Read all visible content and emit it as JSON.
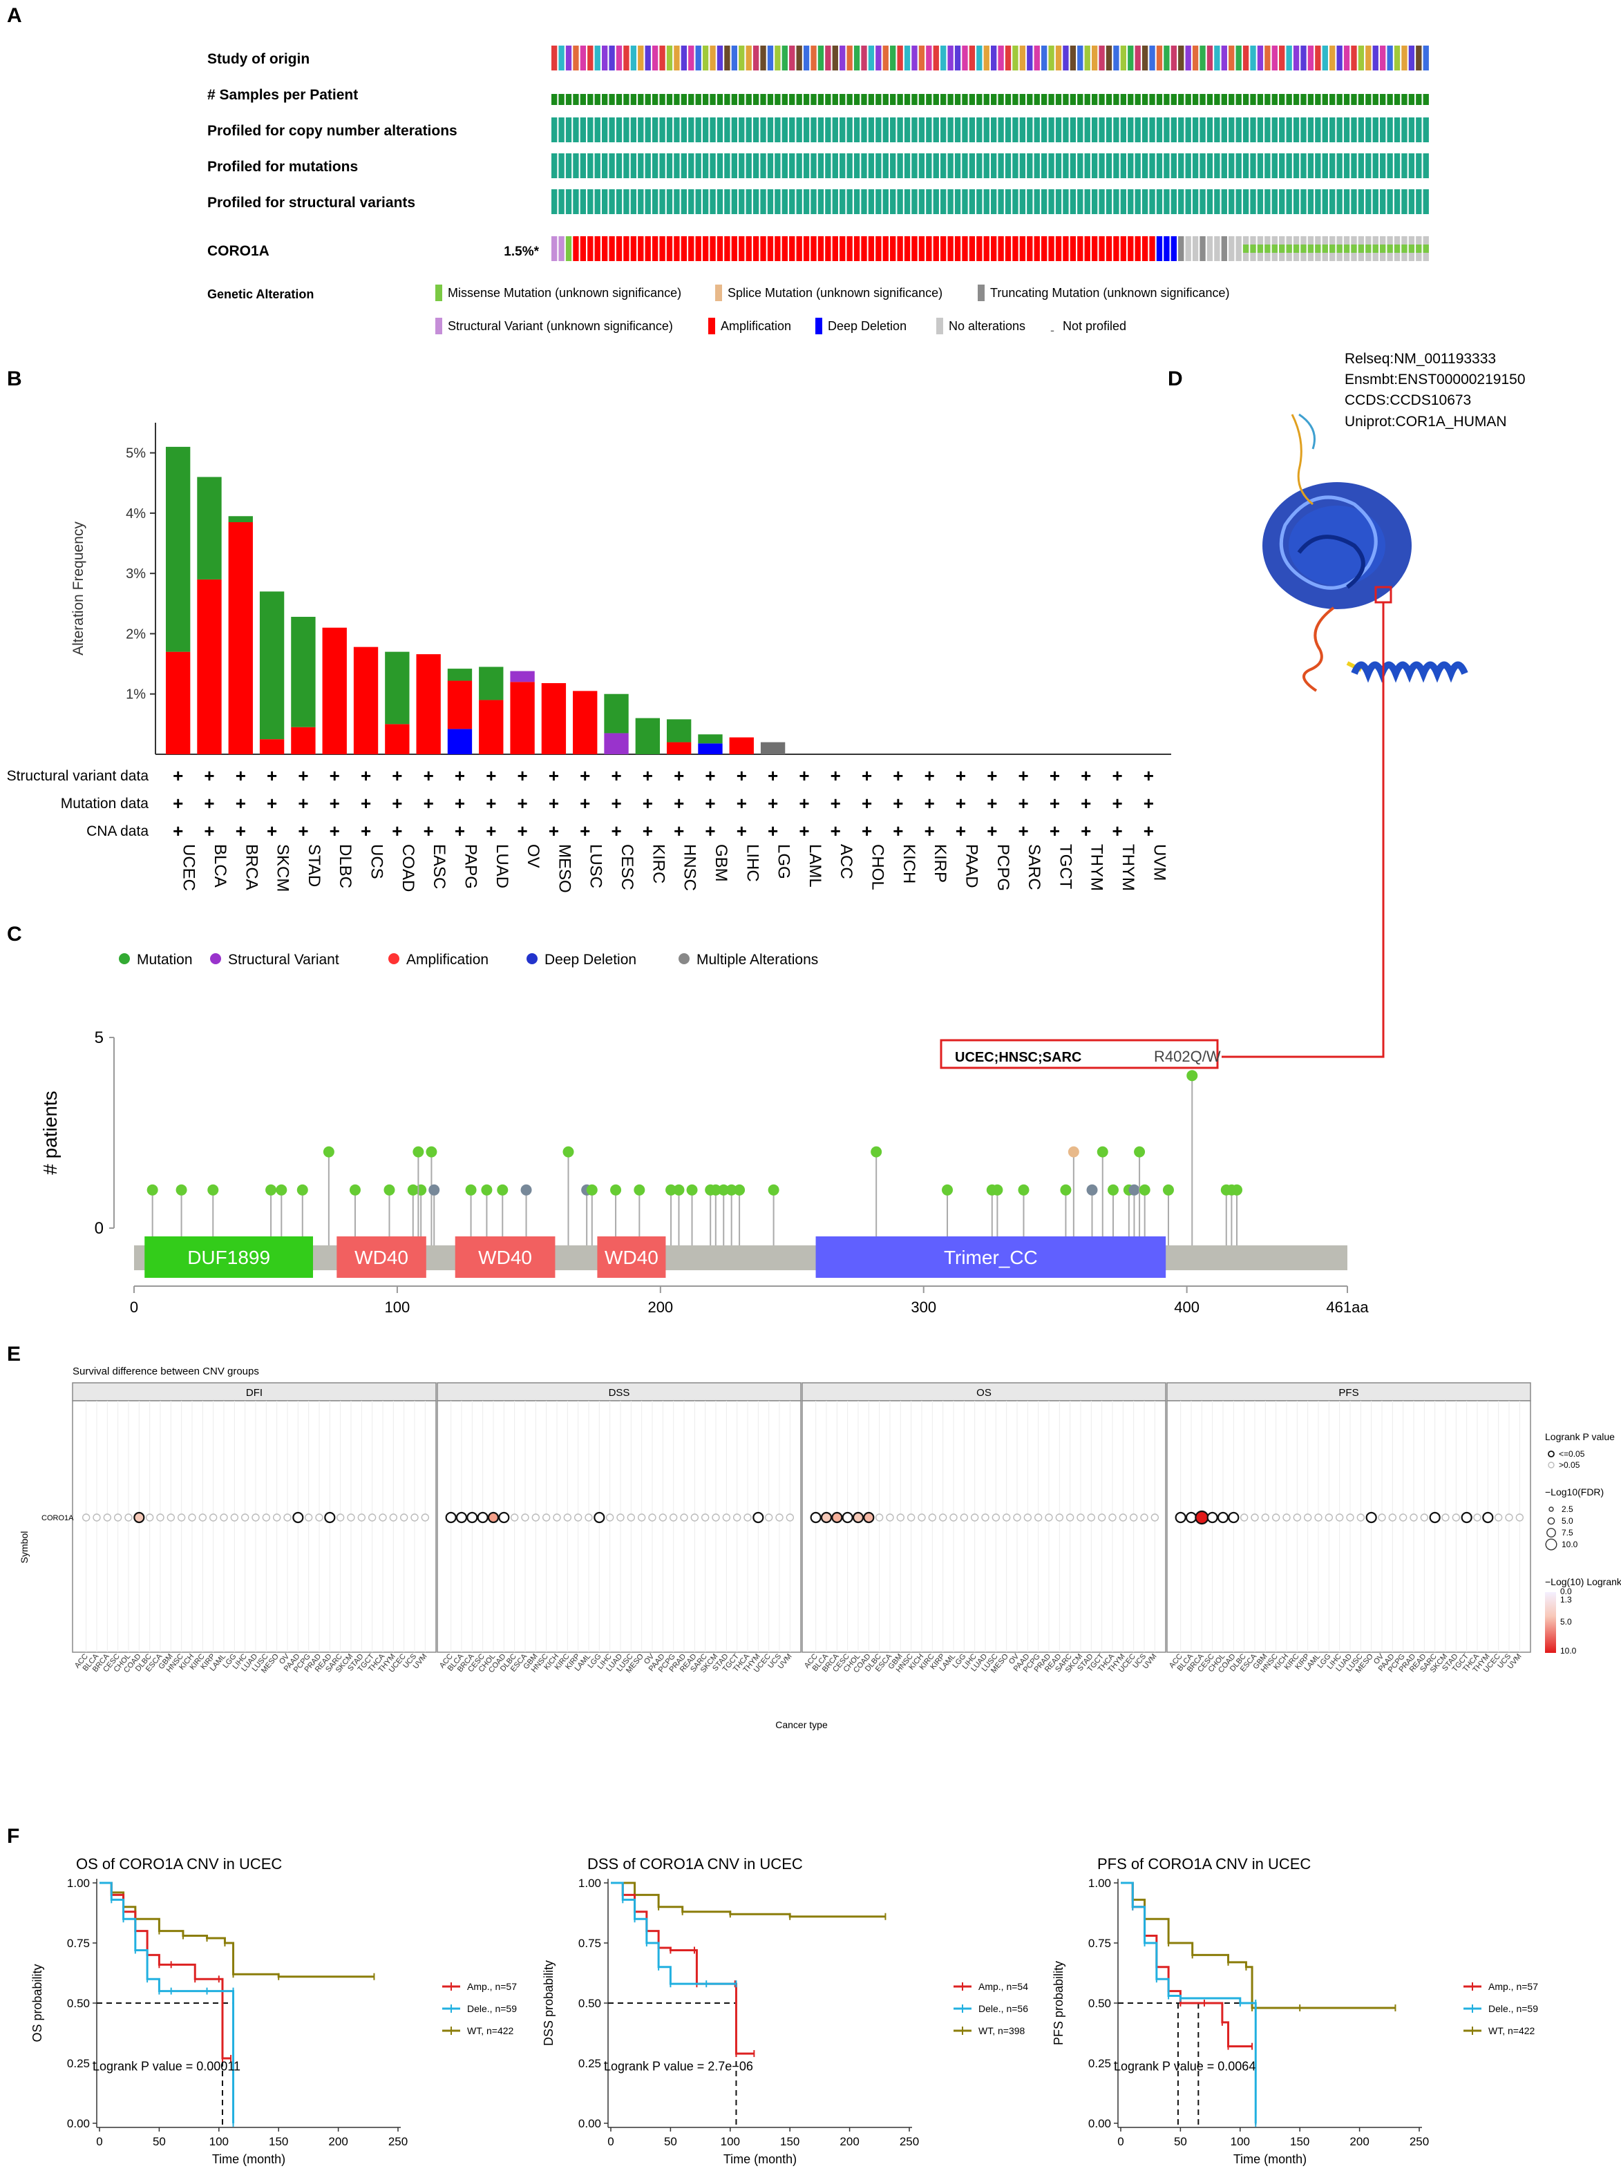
{
  "panel_labels": {
    "A": "A",
    "B": "B",
    "C": "C",
    "D": "D",
    "E": "E",
    "F": "F"
  },
  "panelA": {
    "track_labels": [
      "Study of origin",
      "# Samples per Patient",
      "Profiled for copy number alterations",
      "Profiled for mutations",
      "Profiled for structural variants"
    ],
    "gene": "CORO1A",
    "gene_freq": "1.5%*",
    "legend_title": "Genetic Alteration",
    "legend": [
      {
        "label": "Missense Mutation (unknown significance)",
        "color": "#7ac943"
      },
      {
        "label": "Splice Mutation (unknown significance)",
        "color": "#e8b98a"
      },
      {
        "label": "Truncating Mutation (unknown significance)",
        "color": "#8c8c8c"
      },
      {
        "label": "Structural Variant (unknown significance)",
        "color": "#c58ed8"
      },
      {
        "label": "Amplification",
        "color": "#ff0000"
      },
      {
        "label": "Deep Deletion",
        "color": "#0000ff"
      },
      {
        "label": "No alterations",
        "color": "#c8c8c8"
      },
      {
        "label": "Not profiled",
        "color": "#ffffff"
      }
    ],
    "colors": {
      "samples": "#1a8a1a",
      "profiled": "#1fa68a"
    }
  },
  "panelB": {
    "ylabel": "Alteration Frequency",
    "yticks": [
      "1%",
      "2%",
      "3%",
      "4%",
      "5%"
    ],
    "ytick_values": [
      1,
      2,
      3,
      4,
      5
    ],
    "ymax": 5.5,
    "row_labels": [
      "Structural variant data",
      "Mutation data",
      "CNA data"
    ],
    "plus": "+",
    "series_colors": {
      "mutation": "#2a9a2a",
      "amplification": "#ff0000",
      "deletion": "#0000ff",
      "sv": "#9933cc",
      "multiple": "#707070"
    },
    "categories": [
      "UCEC",
      "BLCA",
      "BRCA",
      "SKCM",
      "STAD",
      "DLBC",
      "UCS",
      "COAD",
      "EASC",
      "PAPG",
      "LUAD",
      "OV",
      "MESO",
      "LUSC",
      "CESC",
      "KIRC",
      "HNSC",
      "GBM",
      "LIHC",
      "LGG",
      "LAML",
      "ACC",
      "CHOL",
      "KICH",
      "KIRP",
      "PAAD",
      "PCPG",
      "SARC",
      "TGCT",
      "THYM",
      "THYM",
      "UVM"
    ],
    "amp": [
      1.7,
      2.9,
      3.85,
      0.25,
      0.45,
      2.1,
      1.78,
      0.5,
      1.66,
      0.8,
      0.9,
      1.2,
      1.18,
      1.05,
      0,
      0,
      0.2,
      0,
      0.28,
      0,
      0,
      0,
      0,
      0,
      0,
      0,
      0,
      0,
      0,
      0,
      0,
      0
    ],
    "mut": [
      3.4,
      1.7,
      0.1,
      2.45,
      1.83,
      0,
      0,
      1.2,
      0,
      0.2,
      0.55,
      0,
      0,
      0,
      0.65,
      0.6,
      0.38,
      0.15,
      0,
      0,
      0,
      0,
      0,
      0,
      0,
      0,
      0,
      0,
      0,
      0,
      0,
      0
    ],
    "del": [
      0,
      0,
      0,
      0,
      0,
      0,
      0,
      0,
      0,
      0.42,
      0,
      0,
      0,
      0,
      0,
      0,
      0,
      0.18,
      0,
      0,
      0,
      0,
      0,
      0,
      0,
      0,
      0,
      0,
      0,
      0,
      0,
      0
    ],
    "sv": [
      0,
      0,
      0,
      0,
      0,
      0,
      0,
      0,
      0,
      0,
      0,
      0.18,
      0,
      0,
      0.35,
      0,
      0,
      0,
      0,
      0,
      0,
      0,
      0,
      0,
      0,
      0,
      0,
      0,
      0,
      0,
      0,
      0
    ],
    "multi": [
      0,
      0,
      0,
      0,
      0,
      0,
      0,
      0,
      0,
      0,
      0,
      0,
      0,
      0,
      0,
      0,
      0,
      0,
      0,
      0.2,
      0,
      0,
      0,
      0,
      0,
      0,
      0,
      0,
      0,
      0,
      0,
      0
    ]
  },
  "panelC": {
    "legend": [
      {
        "label": "Mutation",
        "color": "#33aa33"
      },
      {
        "label": "Structural Variant",
        "color": "#9933cc"
      },
      {
        "label": "Amplification",
        "color": "#ff3333"
      },
      {
        "label": "Deep Deletion",
        "color": "#2233cc"
      },
      {
        "label": "Multiple Alterations",
        "color": "#888888"
      }
    ],
    "ylabel": "# patients",
    "yticks": [
      "0",
      "5"
    ],
    "xticks": [
      "0",
      "100",
      "200",
      "300",
      "400",
      "461aa"
    ],
    "xtick_values": [
      0,
      100,
      200,
      300,
      400,
      461
    ],
    "length": 461,
    "domains": [
      {
        "label": "DUF1899",
        "start": 4,
        "end": 68,
        "color": "#33cc1a"
      },
      {
        "label": "WD40",
        "start": 77,
        "end": 111,
        "color": "#f26060"
      },
      {
        "label": "WD40",
        "start": 122,
        "end": 160,
        "color": "#f26060"
      },
      {
        "label": "WD40",
        "start": 176,
        "end": 202,
        "color": "#f26060"
      },
      {
        "label": "Trimer_CC",
        "start": 259,
        "end": 392,
        "color": "#6060ff"
      }
    ],
    "annotation_cancers": "UCEC;HNSC;SARC",
    "annotation_mutation": "R402Q/W",
    "lollipops": [
      {
        "pos": 7,
        "n": 1,
        "c": "#66cc33"
      },
      {
        "pos": 18,
        "n": 1,
        "c": "#66cc33"
      },
      {
        "pos": 30,
        "n": 1,
        "c": "#66cc33"
      },
      {
        "pos": 52,
        "n": 1,
        "c": "#66cc33"
      },
      {
        "pos": 56,
        "n": 1,
        "c": "#66cc33"
      },
      {
        "pos": 64,
        "n": 1,
        "c": "#66cc33"
      },
      {
        "pos": 74,
        "n": 2,
        "c": "#66cc33"
      },
      {
        "pos": 84,
        "n": 1,
        "c": "#66cc33"
      },
      {
        "pos": 97,
        "n": 1,
        "c": "#66cc33"
      },
      {
        "pos": 106,
        "n": 1,
        "c": "#66cc33"
      },
      {
        "pos": 109,
        "n": 1,
        "c": "#66cc33"
      },
      {
        "pos": 108,
        "n": 2,
        "c": "#66cc33"
      },
      {
        "pos": 113,
        "n": 2,
        "c": "#66cc33"
      },
      {
        "pos": 114,
        "n": 1,
        "c": "#778899"
      },
      {
        "pos": 128,
        "n": 1,
        "c": "#66cc33"
      },
      {
        "pos": 134,
        "n": 1,
        "c": "#66cc33"
      },
      {
        "pos": 140,
        "n": 1,
        "c": "#66cc33"
      },
      {
        "pos": 149,
        "n": 1,
        "c": "#778899"
      },
      {
        "pos": 165,
        "n": 2,
        "c": "#66cc33"
      },
      {
        "pos": 172,
        "n": 1,
        "c": "#778899"
      },
      {
        "pos": 174,
        "n": 1,
        "c": "#66cc33"
      },
      {
        "pos": 183,
        "n": 1,
        "c": "#66cc33"
      },
      {
        "pos": 192,
        "n": 1,
        "c": "#66cc33"
      },
      {
        "pos": 204,
        "n": 1,
        "c": "#66cc33"
      },
      {
        "pos": 207,
        "n": 1,
        "c": "#66cc33"
      },
      {
        "pos": 212,
        "n": 1,
        "c": "#66cc33"
      },
      {
        "pos": 219,
        "n": 1,
        "c": "#66cc33"
      },
      {
        "pos": 221,
        "n": 1,
        "c": "#66cc33"
      },
      {
        "pos": 224,
        "n": 1,
        "c": "#66cc33"
      },
      {
        "pos": 227,
        "n": 1,
        "c": "#66cc33"
      },
      {
        "pos": 230,
        "n": 1,
        "c": "#66cc33"
      },
      {
        "pos": 243,
        "n": 1,
        "c": "#66cc33"
      },
      {
        "pos": 282,
        "n": 2,
        "c": "#66cc33"
      },
      {
        "pos": 309,
        "n": 1,
        "c": "#66cc33"
      },
      {
        "pos": 326,
        "n": 1,
        "c": "#66cc33"
      },
      {
        "pos": 328,
        "n": 1,
        "c": "#66cc33"
      },
      {
        "pos": 338,
        "n": 1,
        "c": "#66cc33"
      },
      {
        "pos": 354,
        "n": 1,
        "c": "#66cc33"
      },
      {
        "pos": 357,
        "n": 2,
        "c": "#e8b98a"
      },
      {
        "pos": 364,
        "n": 1,
        "c": "#778899"
      },
      {
        "pos": 368,
        "n": 2,
        "c": "#66cc33"
      },
      {
        "pos": 372,
        "n": 1,
        "c": "#66cc33"
      },
      {
        "pos": 378,
        "n": 1,
        "c": "#66cc33"
      },
      {
        "pos": 380,
        "n": 1,
        "c": "#778899"
      },
      {
        "pos": 382,
        "n": 2,
        "c": "#66cc33"
      },
      {
        "pos": 384,
        "n": 1,
        "c": "#66cc33"
      },
      {
        "pos": 393,
        "n": 1,
        "c": "#66cc33"
      },
      {
        "pos": 402,
        "n": 4,
        "c": "#66cc33"
      },
      {
        "pos": 415,
        "n": 1,
        "c": "#66cc33"
      },
      {
        "pos": 417,
        "n": 1,
        "c": "#66cc33"
      },
      {
        "pos": 419,
        "n": 1,
        "c": "#66cc33"
      }
    ]
  },
  "panelD": {
    "info": [
      "Relseq:NM_001193333",
      "Ensmbt:ENST00000219150",
      "CCDS:CCDS10673",
      "Uniprot:COR1A_HUMAN"
    ]
  },
  "panelE": {
    "title": "Survival difference between CNV groups",
    "facets": [
      "DFI",
      "DSS",
      "OS",
      "PFS"
    ],
    "symbol_label": "Symbol",
    "row_label": "CORO1A",
    "xlabel": "Cancer type",
    "legend_p_title": "Logrank P value",
    "legend_p_items": [
      "<=0.05",
      ">0.05"
    ],
    "legend_fdr_title": "−Log10(FDR)",
    "legend_fdr_items": [
      "2.5",
      "5.0",
      "7.5",
      "10.0"
    ],
    "legend_lr_title": "−Log(10) Logrank",
    "legend_lr_items": [
      "0.0",
      "1.3",
      "5.0",
      "10.0"
    ],
    "cancers": [
      "ACC",
      "BLCA",
      "BRCA",
      "CESC",
      "CHOL",
      "COAD",
      "DLBC",
      "ESCA",
      "GBM",
      "HNSC",
      "KICH",
      "KIRC",
      "KIRP",
      "LAML",
      "LGG",
      "LIHC",
      "LUAD",
      "LUSC",
      "MESO",
      "OV",
      "PAAD",
      "PCPG",
      "PRAD",
      "READ",
      "SARC",
      "SKCM",
      "STAD",
      "TGCT",
      "THCA",
      "THYM",
      "UCEC",
      "UCS",
      "UVM"
    ],
    "points": {
      "DFI": [
        {
          "i": 5,
          "s": 1,
          "f": "#f5c9b8"
        },
        {
          "i": 20,
          "s": 1
        },
        {
          "i": 23,
          "s": 1
        }
      ],
      "DSS": [
        {
          "i": 0,
          "s": 1
        },
        {
          "i": 1,
          "s": 1
        },
        {
          "i": 2,
          "s": 1
        },
        {
          "i": 3,
          "s": 1
        },
        {
          "i": 4,
          "s": 1,
          "f": "#f5a08a"
        },
        {
          "i": 5,
          "s": 1
        },
        {
          "i": 14,
          "s": 1
        },
        {
          "i": 29,
          "s": 1
        }
      ],
      "OS": [
        {
          "i": 0,
          "s": 1
        },
        {
          "i": 1,
          "s": 1,
          "f": "#f5c9b8"
        },
        {
          "i": 2,
          "s": 1,
          "f": "#f5b09a"
        },
        {
          "i": 3,
          "s": 1
        },
        {
          "i": 4,
          "s": 1,
          "f": "#f5c9b8"
        },
        {
          "i": 5,
          "s": 1,
          "f": "#f5b8a5"
        }
      ],
      "PFS": [
        {
          "i": 0,
          "s": 1
        },
        {
          "i": 1,
          "s": 1
        },
        {
          "i": 2,
          "s": 1,
          "f": "#e11919"
        },
        {
          "i": 3,
          "s": 1
        },
        {
          "i": 4,
          "s": 1
        },
        {
          "i": 5,
          "s": 1
        },
        {
          "i": 18,
          "s": 1
        },
        {
          "i": 24,
          "s": 1
        },
        {
          "i": 27,
          "s": 1
        },
        {
          "i": 29,
          "s": 1
        }
      ]
    }
  },
  "panelF": {
    "xlabel": "Time (month)",
    "xticks": [
      "0",
      "50",
      "100",
      "150",
      "200",
      "250"
    ],
    "yticks": [
      "0.00",
      "0.25",
      "0.50",
      "0.75",
      "1.00"
    ],
    "colors": {
      "amp": "#dd2222",
      "del": "#22b0e0",
      "wt": "#8b7d0a"
    },
    "plots": [
      {
        "title": "OS of CORO1A CNV in UCEC",
        "ylabel": "OS probability",
        "pvalue": "Logrank P value = 0.00011",
        "legend": [
          "Amp., n=57",
          "Dele., n=59",
          "WT, n=422"
        ],
        "median_lines": [
          103,
          112
        ],
        "amp": [
          [
            0,
            1
          ],
          [
            10,
            0.95
          ],
          [
            20,
            0.88
          ],
          [
            30,
            0.8
          ],
          [
            40,
            0.7
          ],
          [
            50,
            0.66
          ],
          [
            60,
            0.66
          ],
          [
            80,
            0.6
          ],
          [
            100,
            0.6
          ],
          [
            103,
            0.27
          ],
          [
            110,
            0.27
          ]
        ],
        "del": [
          [
            0,
            1
          ],
          [
            10,
            0.93
          ],
          [
            20,
            0.85
          ],
          [
            30,
            0.72
          ],
          [
            40,
            0.6
          ],
          [
            50,
            0.55
          ],
          [
            60,
            0.55
          ],
          [
            90,
            0.55
          ],
          [
            112,
            0.55
          ],
          [
            112,
            0.0
          ]
        ],
        "wt": [
          [
            0,
            1
          ],
          [
            10,
            0.96
          ],
          [
            20,
            0.9
          ],
          [
            30,
            0.85
          ],
          [
            50,
            0.8
          ],
          [
            70,
            0.78
          ],
          [
            90,
            0.77
          ],
          [
            105,
            0.75
          ],
          [
            112,
            0.62
          ],
          [
            150,
            0.61
          ],
          [
            230,
            0.61
          ]
        ]
      },
      {
        "title": "DSS of CORO1A CNV in UCEC",
        "ylabel": "DSS probability",
        "pvalue": "Logrank P value = 2.7e−06",
        "legend": [
          "Amp., n=54",
          "Dele., n=56",
          "WT, n=398"
        ],
        "median_lines": [
          105
        ],
        "amp": [
          [
            0,
            1
          ],
          [
            10,
            0.95
          ],
          [
            20,
            0.88
          ],
          [
            30,
            0.8
          ],
          [
            40,
            0.73
          ],
          [
            50,
            0.72
          ],
          [
            70,
            0.72
          ],
          [
            72,
            0.58
          ],
          [
            104,
            0.58
          ],
          [
            105,
            0.29
          ],
          [
            120,
            0.29
          ]
        ],
        "del": [
          [
            0,
            1
          ],
          [
            10,
            0.93
          ],
          [
            20,
            0.85
          ],
          [
            30,
            0.75
          ],
          [
            40,
            0.65
          ],
          [
            50,
            0.58
          ],
          [
            80,
            0.58
          ],
          [
            105,
            0.58
          ]
        ],
        "wt": [
          [
            0,
            1
          ],
          [
            20,
            0.95
          ],
          [
            40,
            0.9
          ],
          [
            60,
            0.88
          ],
          [
            100,
            0.87
          ],
          [
            150,
            0.86
          ],
          [
            230,
            0.86
          ]
        ]
      },
      {
        "title": "PFS of CORO1A CNV in UCEC",
        "ylabel": "PFS probability",
        "pvalue": "Logrank P value = 0.0064",
        "legend": [
          "Amp., n=57",
          "Dele., n=59",
          "WT, n=422"
        ],
        "median_lines": [
          48,
          65,
          113
        ],
        "amp": [
          [
            0,
            1
          ],
          [
            10,
            0.9
          ],
          [
            20,
            0.78
          ],
          [
            30,
            0.65
          ],
          [
            40,
            0.55
          ],
          [
            50,
            0.5
          ],
          [
            70,
            0.5
          ],
          [
            85,
            0.42
          ],
          [
            90,
            0.32
          ],
          [
            110,
            0.32
          ]
        ],
        "del": [
          [
            0,
            1
          ],
          [
            10,
            0.9
          ],
          [
            20,
            0.75
          ],
          [
            30,
            0.6
          ],
          [
            40,
            0.53
          ],
          [
            50,
            0.52
          ],
          [
            100,
            0.5
          ],
          [
            113,
            0.5
          ],
          [
            113,
            0.0
          ]
        ],
        "wt": [
          [
            0,
            1
          ],
          [
            10,
            0.93
          ],
          [
            20,
            0.85
          ],
          [
            40,
            0.75
          ],
          [
            60,
            0.7
          ],
          [
            90,
            0.67
          ],
          [
            105,
            0.65
          ],
          [
            110,
            0.48
          ],
          [
            150,
            0.48
          ],
          [
            230,
            0.48
          ]
        ]
      }
    ]
  }
}
